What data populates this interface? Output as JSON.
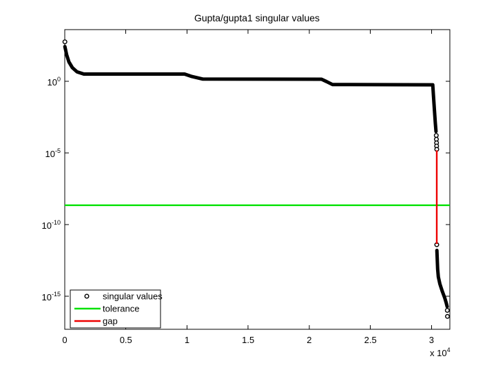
{
  "title": "Gupta/gupta1 singular values",
  "legend": {
    "position": "bottom-left-inside",
    "entries": [
      {
        "label": "singular values",
        "style": "marker",
        "color": "#000000"
      },
      {
        "label": "tolerance",
        "style": "line",
        "color": "#00e100"
      },
      {
        "label": "gap",
        "style": "line",
        "color": "#ee0000"
      }
    ]
  },
  "chart_data": {
    "type": "scatter",
    "title": "Gupta/gupta1 singular values",
    "xlabel": "",
    "ylabel": "",
    "grid": false,
    "x_scale": "linear",
    "y_scale": "log10",
    "xlim": [
      0,
      31500
    ],
    "ylim_log10": [
      -17.3,
      3.6
    ],
    "x_ticks": {
      "values": [
        0,
        5000,
        10000,
        15000,
        20000,
        25000,
        30000
      ],
      "labels": [
        "0",
        "0.5",
        "1",
        "1.5",
        "2",
        "2.5",
        "3"
      ],
      "multiplier_label": "x 10^4"
    },
    "y_ticks": {
      "log10_values": [
        0,
        -5,
        -10,
        -15
      ],
      "labels": [
        "10^0",
        "10^-5",
        "10^-10",
        "10^-15"
      ]
    },
    "series": [
      {
        "name": "singular values",
        "type": "dense-markers",
        "marker": "o",
        "color": "#000000",
        "segments_log10": [
          [
            [
              10,
              2.42
            ],
            [
              150,
              1.85
            ],
            [
              340,
              1.35
            ],
            [
              620,
              0.95
            ],
            [
              1000,
              0.66
            ],
            [
              1560,
              0.5
            ],
            [
              9800,
              0.5
            ],
            [
              10400,
              0.33
            ],
            [
              11300,
              0.15
            ],
            [
              21000,
              0.14
            ],
            [
              21400,
              -0.02
            ],
            [
              21900,
              -0.23
            ],
            [
              30100,
              -0.25
            ],
            [
              30160,
              -1.0
            ],
            [
              30240,
              -2.0
            ],
            [
              30310,
              -2.9
            ],
            [
              30370,
              -3.5
            ]
          ],
          [
            [
              30440,
              -11.8
            ],
            [
              30470,
              -12.4
            ],
            [
              30500,
              -13.1
            ],
            [
              30560,
              -13.65
            ],
            [
              30690,
              -14.15
            ],
            [
              30880,
              -14.65
            ],
            [
              31080,
              -15.1
            ],
            [
              31200,
              -15.45
            ],
            [
              31280,
              -15.72
            ]
          ]
        ],
        "isolated_points_log10": [
          [
            10,
            2.75
          ],
          [
            30390,
            -3.78
          ],
          [
            30400,
            -4.05
          ],
          [
            30410,
            -4.3
          ],
          [
            30420,
            -4.52
          ],
          [
            30430,
            -4.75
          ],
          [
            30430,
            -11.4
          ],
          [
            31290,
            -15.98
          ],
          [
            31300,
            -16.4
          ]
        ]
      },
      {
        "name": "tolerance",
        "type": "hline",
        "color": "#00e100",
        "y_log10": -8.65,
        "x_from": 0,
        "x_to": 31500
      },
      {
        "name": "gap",
        "type": "vline",
        "color": "#ee0000",
        "x": 30430,
        "y_log10_from": -4.82,
        "y_log10_to": -11.35
      }
    ],
    "legend_position": "bottom-left-inside"
  }
}
